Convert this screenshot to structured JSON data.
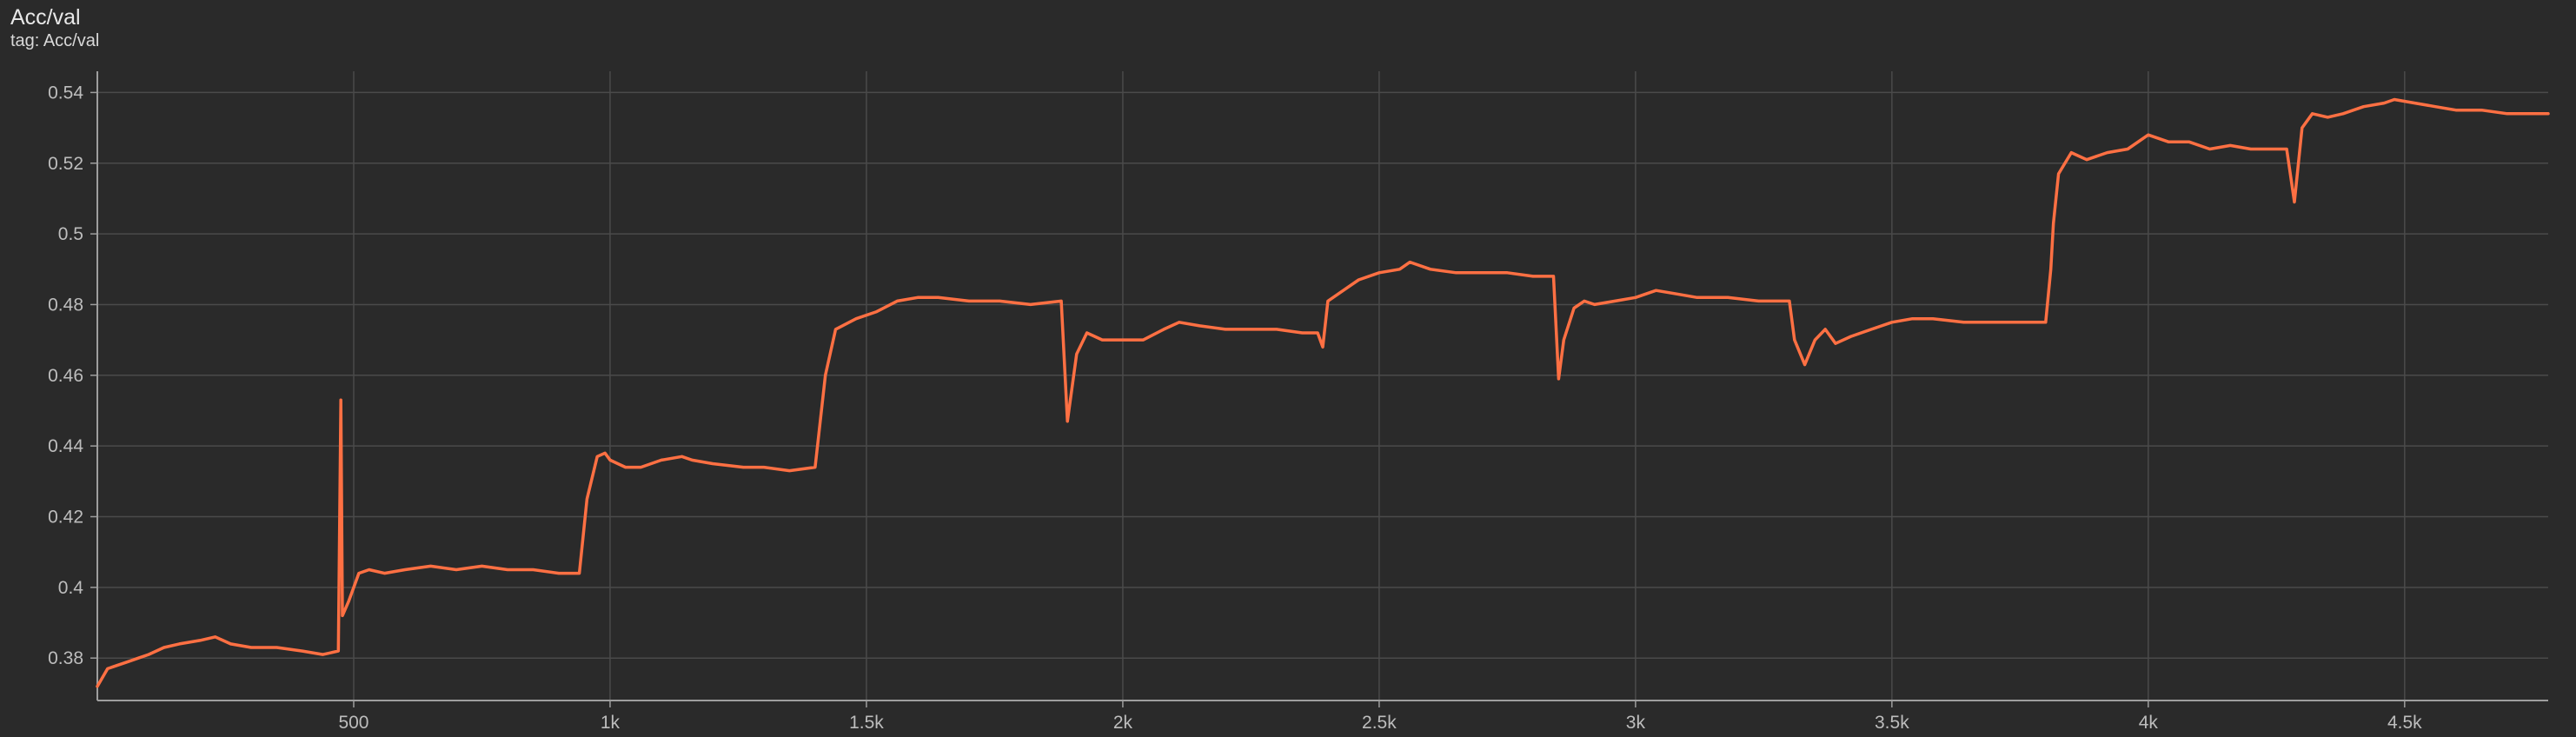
{
  "header": {
    "title": "Acc/val",
    "subtitle": "tag: Acc/val"
  },
  "colors": {
    "series": "#ff7043",
    "grid": "#4a4a4a",
    "axis": "#9e9e9e",
    "background": "#2a2a2a"
  },
  "chart_data": {
    "type": "line",
    "title": "Acc/val",
    "xlabel": "",
    "ylabel": "",
    "xlim": [
      0,
      4780
    ],
    "ylim": [
      0.368,
      0.546
    ],
    "grid": true,
    "legend": "none",
    "x_ticks": [
      {
        "value": 500,
        "label": "500"
      },
      {
        "value": 1000,
        "label": "1k"
      },
      {
        "value": 1500,
        "label": "1.5k"
      },
      {
        "value": 2000,
        "label": "2k"
      },
      {
        "value": 2500,
        "label": "2.5k"
      },
      {
        "value": 3000,
        "label": "3k"
      },
      {
        "value": 3500,
        "label": "3.5k"
      },
      {
        "value": 4000,
        "label": "4k"
      },
      {
        "value": 4500,
        "label": "4.5k"
      }
    ],
    "y_ticks": [
      {
        "value": 0.38,
        "label": "0.38"
      },
      {
        "value": 0.4,
        "label": "0.4"
      },
      {
        "value": 0.42,
        "label": "0.42"
      },
      {
        "value": 0.44,
        "label": "0.44"
      },
      {
        "value": 0.46,
        "label": "0.46"
      },
      {
        "value": 0.48,
        "label": "0.48"
      },
      {
        "value": 0.5,
        "label": "0.5"
      },
      {
        "value": 0.52,
        "label": "0.52"
      },
      {
        "value": 0.54,
        "label": "0.54"
      }
    ],
    "series": [
      {
        "name": "",
        "color": "#ff7043",
        "points": [
          [
            0,
            0.372
          ],
          [
            20,
            0.377
          ],
          [
            40,
            0.378
          ],
          [
            60,
            0.379
          ],
          [
            80,
            0.38
          ],
          [
            100,
            0.381
          ],
          [
            130,
            0.383
          ],
          [
            160,
            0.384
          ],
          [
            200,
            0.385
          ],
          [
            230,
            0.386
          ],
          [
            260,
            0.384
          ],
          [
            300,
            0.383
          ],
          [
            350,
            0.383
          ],
          [
            400,
            0.382
          ],
          [
            440,
            0.381
          ],
          [
            470,
            0.382
          ],
          [
            475,
            0.453
          ],
          [
            478,
            0.392
          ],
          [
            490,
            0.396
          ],
          [
            510,
            0.404
          ],
          [
            530,
            0.405
          ],
          [
            560,
            0.404
          ],
          [
            600,
            0.405
          ],
          [
            650,
            0.406
          ],
          [
            700,
            0.405
          ],
          [
            750,
            0.406
          ],
          [
            800,
            0.405
          ],
          [
            850,
            0.405
          ],
          [
            900,
            0.404
          ],
          [
            940,
            0.404
          ],
          [
            955,
            0.425
          ],
          [
            975,
            0.437
          ],
          [
            990,
            0.438
          ],
          [
            1000,
            0.436
          ],
          [
            1030,
            0.434
          ],
          [
            1060,
            0.434
          ],
          [
            1100,
            0.436
          ],
          [
            1140,
            0.437
          ],
          [
            1160,
            0.436
          ],
          [
            1200,
            0.435
          ],
          [
            1260,
            0.434
          ],
          [
            1300,
            0.434
          ],
          [
            1350,
            0.433
          ],
          [
            1400,
            0.434
          ],
          [
            1420,
            0.46
          ],
          [
            1440,
            0.473
          ],
          [
            1480,
            0.476
          ],
          [
            1520,
            0.478
          ],
          [
            1560,
            0.481
          ],
          [
            1600,
            0.482
          ],
          [
            1640,
            0.482
          ],
          [
            1700,
            0.481
          ],
          [
            1760,
            0.481
          ],
          [
            1820,
            0.48
          ],
          [
            1880,
            0.481
          ],
          [
            1892,
            0.447
          ],
          [
            1910,
            0.466
          ],
          [
            1930,
            0.472
          ],
          [
            1960,
            0.47
          ],
          [
            2000,
            0.47
          ],
          [
            2040,
            0.47
          ],
          [
            2080,
            0.473
          ],
          [
            2110,
            0.475
          ],
          [
            2150,
            0.474
          ],
          [
            2200,
            0.473
          ],
          [
            2250,
            0.473
          ],
          [
            2300,
            0.473
          ],
          [
            2350,
            0.472
          ],
          [
            2380,
            0.472
          ],
          [
            2390,
            0.468
          ],
          [
            2400,
            0.481
          ],
          [
            2430,
            0.484
          ],
          [
            2460,
            0.487
          ],
          [
            2500,
            0.489
          ],
          [
            2540,
            0.49
          ],
          [
            2560,
            0.492
          ],
          [
            2600,
            0.49
          ],
          [
            2650,
            0.489
          ],
          [
            2700,
            0.489
          ],
          [
            2750,
            0.489
          ],
          [
            2800,
            0.488
          ],
          [
            2840,
            0.488
          ],
          [
            2850,
            0.459
          ],
          [
            2860,
            0.47
          ],
          [
            2880,
            0.479
          ],
          [
            2900,
            0.481
          ],
          [
            2920,
            0.48
          ],
          [
            2960,
            0.481
          ],
          [
            3000,
            0.482
          ],
          [
            3040,
            0.484
          ],
          [
            3080,
            0.483
          ],
          [
            3120,
            0.482
          ],
          [
            3180,
            0.482
          ],
          [
            3240,
            0.481
          ],
          [
            3300,
            0.481
          ],
          [
            3310,
            0.47
          ],
          [
            3330,
            0.463
          ],
          [
            3350,
            0.47
          ],
          [
            3370,
            0.473
          ],
          [
            3390,
            0.469
          ],
          [
            3420,
            0.471
          ],
          [
            3460,
            0.473
          ],
          [
            3500,
            0.475
          ],
          [
            3540,
            0.476
          ],
          [
            3580,
            0.476
          ],
          [
            3640,
            0.475
          ],
          [
            3700,
            0.475
          ],
          [
            3760,
            0.475
          ],
          [
            3800,
            0.475
          ],
          [
            3810,
            0.49
          ],
          [
            3815,
            0.503
          ],
          [
            3825,
            0.517
          ],
          [
            3850,
            0.523
          ],
          [
            3880,
            0.521
          ],
          [
            3920,
            0.523
          ],
          [
            3960,
            0.524
          ],
          [
            4000,
            0.528
          ],
          [
            4040,
            0.526
          ],
          [
            4080,
            0.526
          ],
          [
            4120,
            0.524
          ],
          [
            4160,
            0.525
          ],
          [
            4200,
            0.524
          ],
          [
            4240,
            0.524
          ],
          [
            4270,
            0.524
          ],
          [
            4285,
            0.509
          ],
          [
            4300,
            0.53
          ],
          [
            4320,
            0.534
          ],
          [
            4350,
            0.533
          ],
          [
            4380,
            0.534
          ],
          [
            4420,
            0.536
          ],
          [
            4460,
            0.537
          ],
          [
            4480,
            0.538
          ],
          [
            4520,
            0.537
          ],
          [
            4560,
            0.536
          ],
          [
            4600,
            0.535
          ],
          [
            4650,
            0.535
          ],
          [
            4700,
            0.534
          ],
          [
            4750,
            0.534
          ],
          [
            4780,
            0.534
          ]
        ]
      }
    ]
  }
}
